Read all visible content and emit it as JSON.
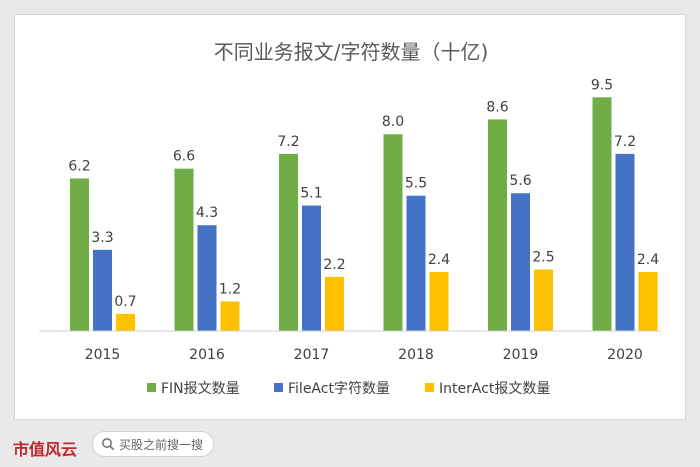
{
  "chart_data": {
    "type": "bar",
    "title": "不同业务报文/字符数量（十亿)",
    "categories": [
      "2015",
      "2016",
      "2017",
      "2018",
      "2019",
      "2020"
    ],
    "series": [
      {
        "name": "FIN报文数量",
        "color": "#70ad47",
        "values": [
          6.2,
          6.6,
          7.2,
          8.0,
          8.6,
          9.5
        ],
        "labels": [
          "6.2",
          "6.6",
          "7.2",
          "8.0",
          "8.6",
          "9.5"
        ]
      },
      {
        "name": "FileAct字符数量",
        "color": "#4472c4",
        "values": [
          3.3,
          4.3,
          5.1,
          5.5,
          5.6,
          7.2
        ],
        "labels": [
          "3.3",
          "4.3",
          "5.1",
          "5.5",
          "5.6",
          "7.2"
        ]
      },
      {
        "name": "InterAct报文数量",
        "color": "#ffc000",
        "values": [
          0.7,
          1.2,
          2.2,
          2.4,
          2.5,
          2.4
        ],
        "labels": [
          "0.7",
          "1.2",
          "2.2",
          "2.4",
          "2.5",
          "2.4"
        ]
      }
    ],
    "ylim": [
      0,
      10
    ],
    "grid": false,
    "legend": "bottom",
    "xlabel": "",
    "ylabel": ""
  },
  "watermark": "市值风云",
  "footer": {
    "brand": "市值风云",
    "search_placeholder": "买股之前搜一搜",
    "search_icon": "search-icon"
  }
}
